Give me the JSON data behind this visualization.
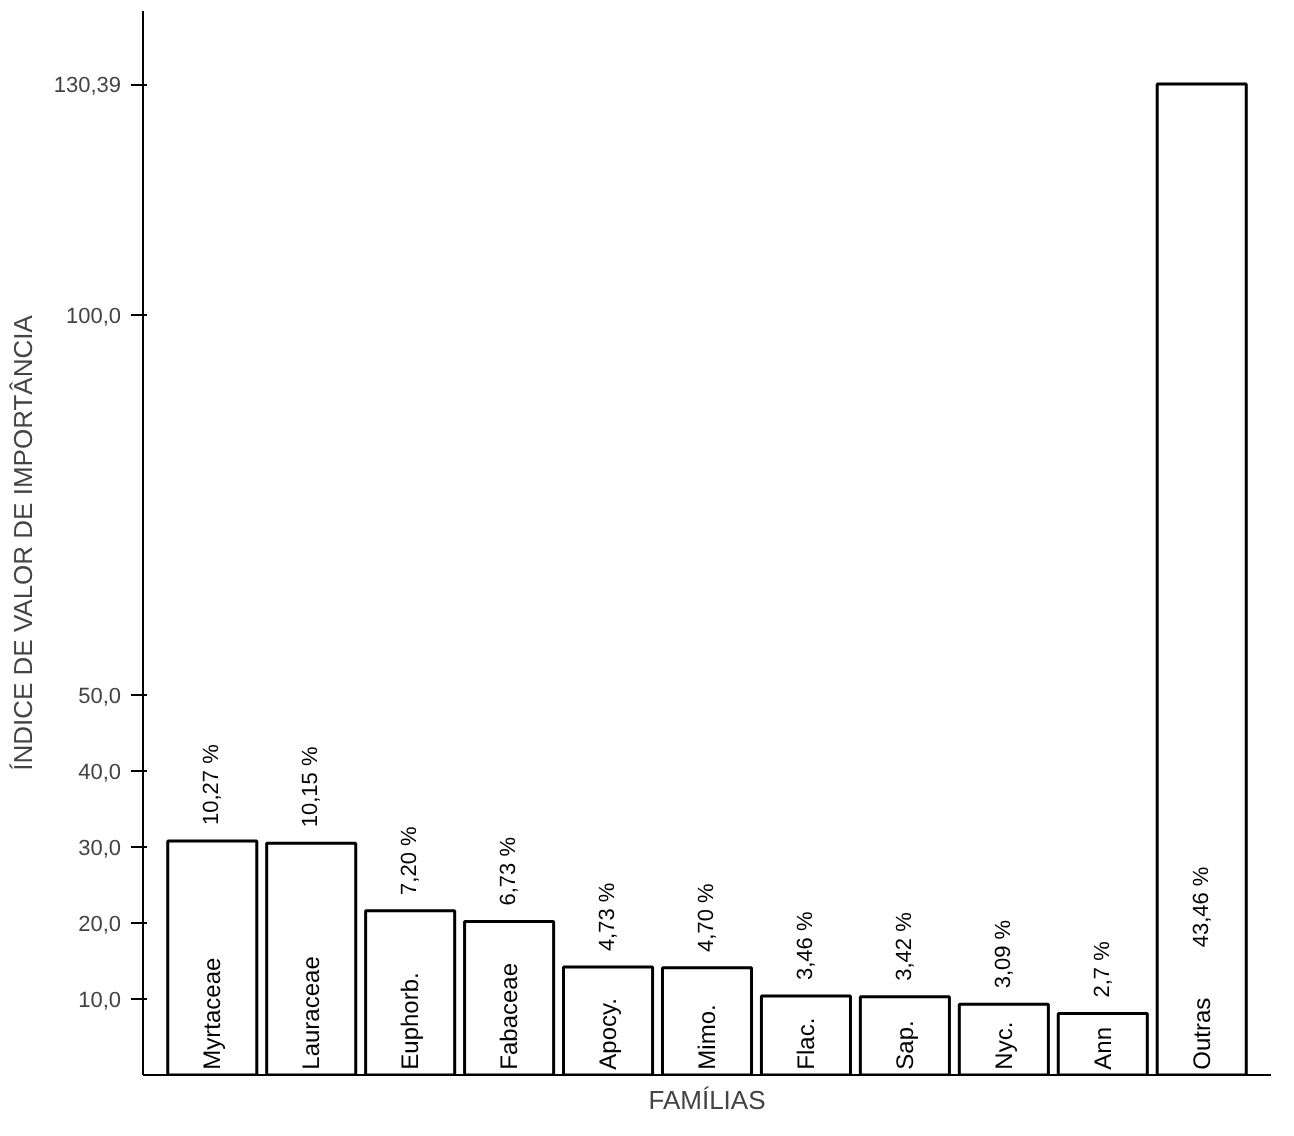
{
  "chart_data": {
    "type": "bar",
    "xlabel": "FAMÍLIAS",
    "ylabel": "ÍNDICE DE VALOR DE IMPORTÂNCIA",
    "categories": [
      "Myrtaceae",
      "Lauraceae",
      "Euphorb.",
      "Fabaceae",
      "Apocy.",
      "Mimo.",
      "Flac.",
      "Sap.",
      "Nyc.",
      "Ann",
      "Outras"
    ],
    "values": [
      30.8,
      30.5,
      21.6,
      20.2,
      14.2,
      14.1,
      10.4,
      10.3,
      9.3,
      8.1,
      130.39
    ],
    "annotations": [
      {
        "text": "10,27 %",
        "x": "Myrtaceae",
        "y": 30.8
      },
      {
        "text": "10,15 %",
        "x": "Lauraceae",
        "y": 30.5
      },
      {
        "text": "7,20 %",
        "x": "Euphorb.",
        "y": 21.6
      },
      {
        "text": "6,73 %",
        "x": "Fabaceae",
        "y": 20.2
      },
      {
        "text": "4,73 %",
        "x": "Apocy.",
        "y": 14.2
      },
      {
        "text": "4,70 %",
        "x": "Mimo.",
        "y": 14.1
      },
      {
        "text": "3,46 %",
        "x": "Flac.",
        "y": 10.4
      },
      {
        "text": "3,42 %",
        "x": "Sap.",
        "y": 10.3
      },
      {
        "text": "3,09 %",
        "x": "Nyc.",
        "y": 9.3
      },
      {
        "text": "2,7 %",
        "x": "Ann",
        "y": 8.1
      },
      "43,46 %"
    ],
    "color": "#ffffff",
    "ylim": [
      0,
      140
    ],
    "yticks": [
      {
        "value": 10,
        "label": "10,0"
      },
      {
        "value": 20,
        "label": "20,0"
      },
      {
        "value": 30,
        "label": "30,0"
      },
      {
        "value": 40,
        "label": "40,0"
      },
      {
        "value": 50,
        "label": "50,0"
      },
      {
        "value": 100,
        "label": "100,0"
      },
      {
        "value": 130.39,
        "label": "130,39"
      }
    ],
    "tick_labels": "y",
    "grid": false
  }
}
